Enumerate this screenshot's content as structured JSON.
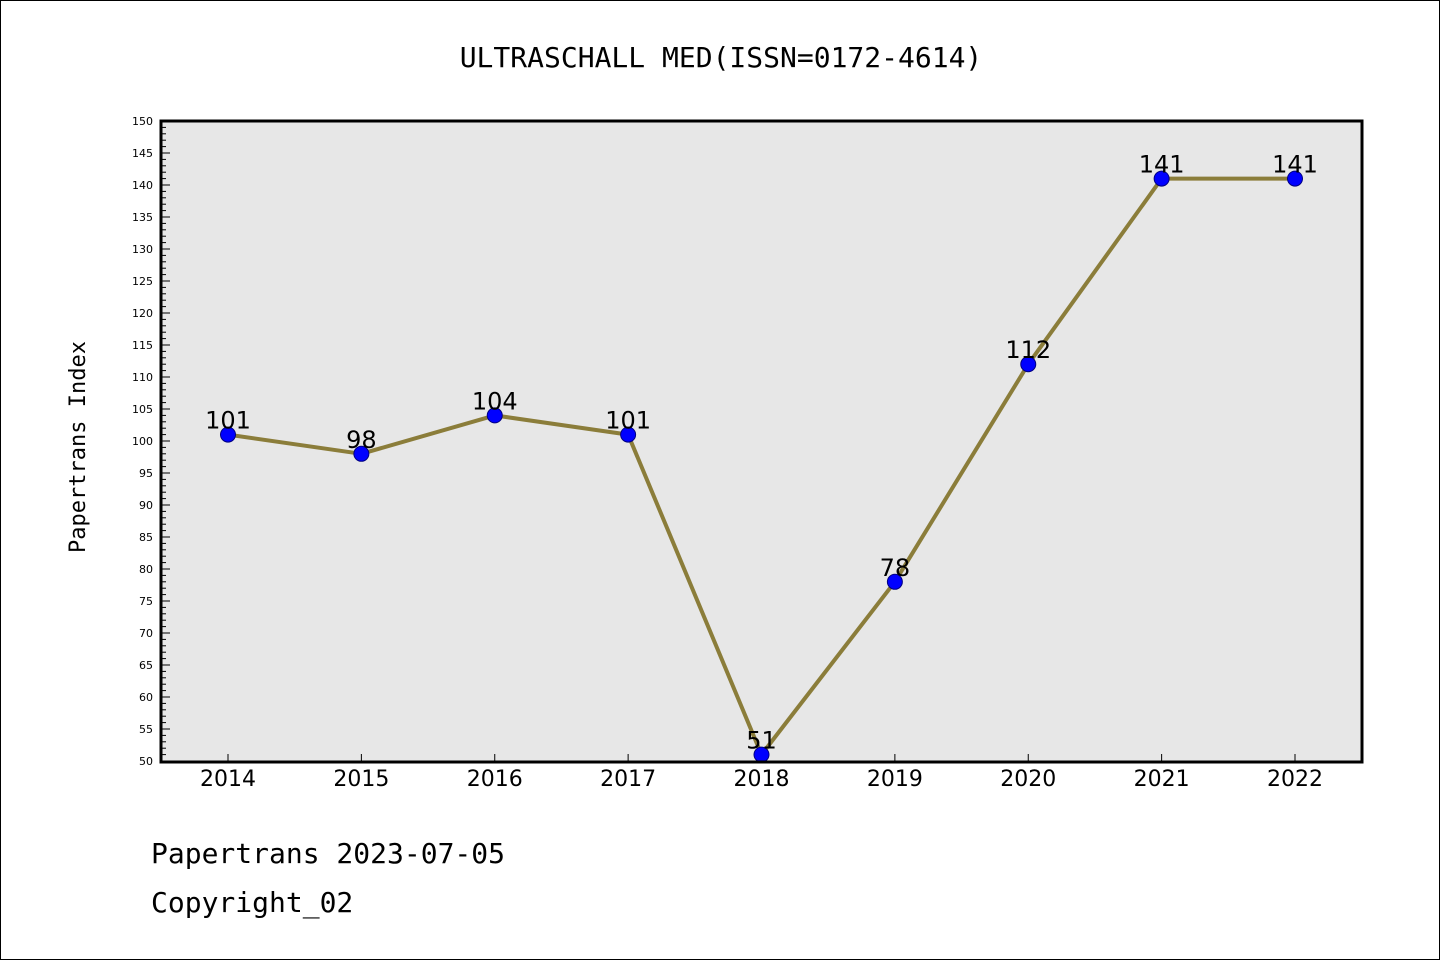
{
  "chart_data": {
    "type": "line",
    "title": "ULTRASCHALL MED(ISSN=0172-4614)",
    "xlabel": "",
    "ylabel": "Papertrans Index",
    "categories": [
      "2014",
      "2015",
      "2016",
      "2017",
      "2018",
      "2019",
      "2020",
      "2021",
      "2022"
    ],
    "series": [
      {
        "values": [
          101,
          98,
          104,
          101,
          51,
          78,
          112,
          141,
          141
        ]
      }
    ],
    "data_labels": [
      "101",
      "98",
      "104",
      "101",
      "51",
      "78",
      "112",
      "141",
      "141"
    ],
    "ylim": [
      50,
      150
    ],
    "y_ticks": [
      50,
      55,
      60,
      65,
      70,
      75,
      80,
      85,
      90,
      95,
      100,
      105,
      110,
      115,
      120,
      125,
      130,
      135,
      140,
      145,
      150
    ],
    "grid": false,
    "legend": "none",
    "colors": {
      "line": "#8B7D3A",
      "marker_fill": "#0000FF",
      "marker_edge": "#000080",
      "plot_background": "#E7E7E7"
    }
  },
  "footer": {
    "line1": "Papertrans 2023-07-05",
    "line2": "Copyright_02"
  }
}
